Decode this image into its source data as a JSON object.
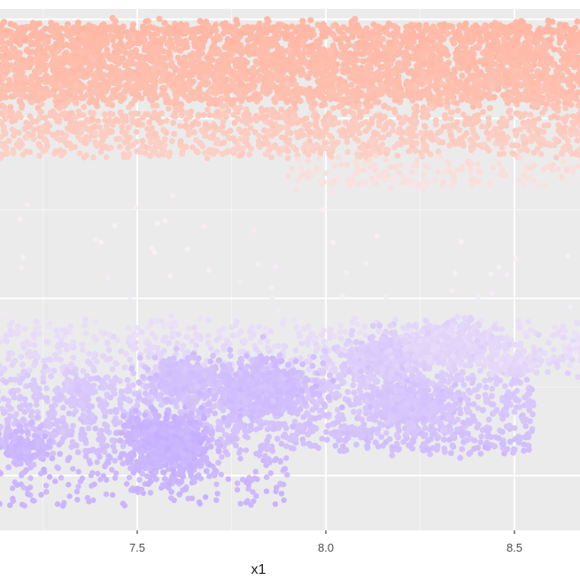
{
  "chart_data": {
    "type": "scatter",
    "title": "",
    "xlabel": "x1",
    "ylabel": "",
    "xlim": [
      7.13,
      8.68
    ],
    "x_ticks": [
      {
        "value": 7.5,
        "label": "7.5"
      },
      {
        "value": 8.0,
        "label": "8.0"
      },
      {
        "value": 8.5,
        "label": "8.5"
      }
    ],
    "x_minor_ticks": [
      7.25,
      7.75,
      8.25
    ],
    "grid": true,
    "legend": "none",
    "colors": {
      "panel": "#EBEBEB",
      "grid_major": "#FFFFFF",
      "grid_minor": "#F5F5F5",
      "high": "#FFB6A2",
      "mid": "#F7F1F5",
      "low": "#C5AEFF"
    },
    "clusters": [
      {
        "name": "upper-dense",
        "x": [
          7.13,
          8.68
        ],
        "v": [
          0.97,
          0.82
        ],
        "shade": [
          0.96,
          0.82
        ],
        "n": 3400,
        "size": 3.6
      },
      {
        "name": "upper-band-lower",
        "x": [
          7.13,
          8.68
        ],
        "v": [
          0.81,
          0.72
        ],
        "shade": [
          0.72,
          0.55
        ],
        "n": 1100,
        "size": 3.4
      },
      {
        "name": "transition",
        "x": [
          7.9,
          8.68
        ],
        "v": [
          0.71,
          0.66
        ],
        "shade": [
          0.35,
          0.25
        ],
        "n": 160,
        "size": 3.2
      },
      {
        "name": "sparse-mid",
        "x": [
          7.13,
          8.68
        ],
        "v": [
          0.65,
          0.42
        ],
        "shade": [
          0.1,
          -0.1
        ],
        "n": 45,
        "size": 3.0
      },
      {
        "name": "lower-upper",
        "x": [
          7.13,
          8.68
        ],
        "v": [
          0.4,
          0.3
        ],
        "shade": [
          -0.25,
          -0.45
        ],
        "n": 650,
        "size": 3.4
      },
      {
        "name": "lower-main",
        "x": [
          7.13,
          8.55
        ],
        "v": [
          0.3,
          0.15
        ],
        "shade": [
          -0.55,
          -0.75
        ],
        "n": 1400,
        "size": 3.4
      },
      {
        "name": "lower-bottom",
        "x": [
          7.13,
          7.9
        ],
        "v": [
          0.15,
          0.05
        ],
        "shade": [
          -0.8,
          -0.9
        ],
        "n": 220,
        "size": 3.2
      }
    ],
    "blobs": [
      {
        "x": 7.58,
        "v": 0.165,
        "rx": 0.1,
        "rv": 0.05,
        "n": 700,
        "shade": -0.9
      },
      {
        "x": 7.82,
        "v": 0.27,
        "rx": 0.12,
        "rv": 0.05,
        "n": 650,
        "shade": -0.75
      },
      {
        "x": 7.62,
        "v": 0.29,
        "rx": 0.08,
        "rv": 0.035,
        "n": 300,
        "shade": -0.72
      },
      {
        "x": 8.22,
        "v": 0.24,
        "rx": 0.1,
        "rv": 0.04,
        "n": 380,
        "shade": -0.65
      },
      {
        "x": 8.15,
        "v": 0.33,
        "rx": 0.1,
        "rv": 0.04,
        "n": 420,
        "shade": -0.55
      },
      {
        "x": 8.33,
        "v": 0.36,
        "rx": 0.12,
        "rv": 0.035,
        "n": 380,
        "shade": -0.4
      },
      {
        "x": 7.2,
        "v": 0.16,
        "rx": 0.06,
        "rv": 0.03,
        "n": 140,
        "shade": -0.85
      },
      {
        "x": 7.35,
        "v": 0.27,
        "rx": 0.04,
        "rv": 0.02,
        "n": 60,
        "shade": -0.6
      },
      {
        "x": 8.5,
        "v": 0.32,
        "rx": 0.06,
        "rv": 0.02,
        "n": 120,
        "shade": -0.35
      },
      {
        "x": 8.72,
        "v": 0.35,
        "rx": 0.1,
        "rv": 0.02,
        "n": 80,
        "shade": -0.25
      }
    ]
  }
}
